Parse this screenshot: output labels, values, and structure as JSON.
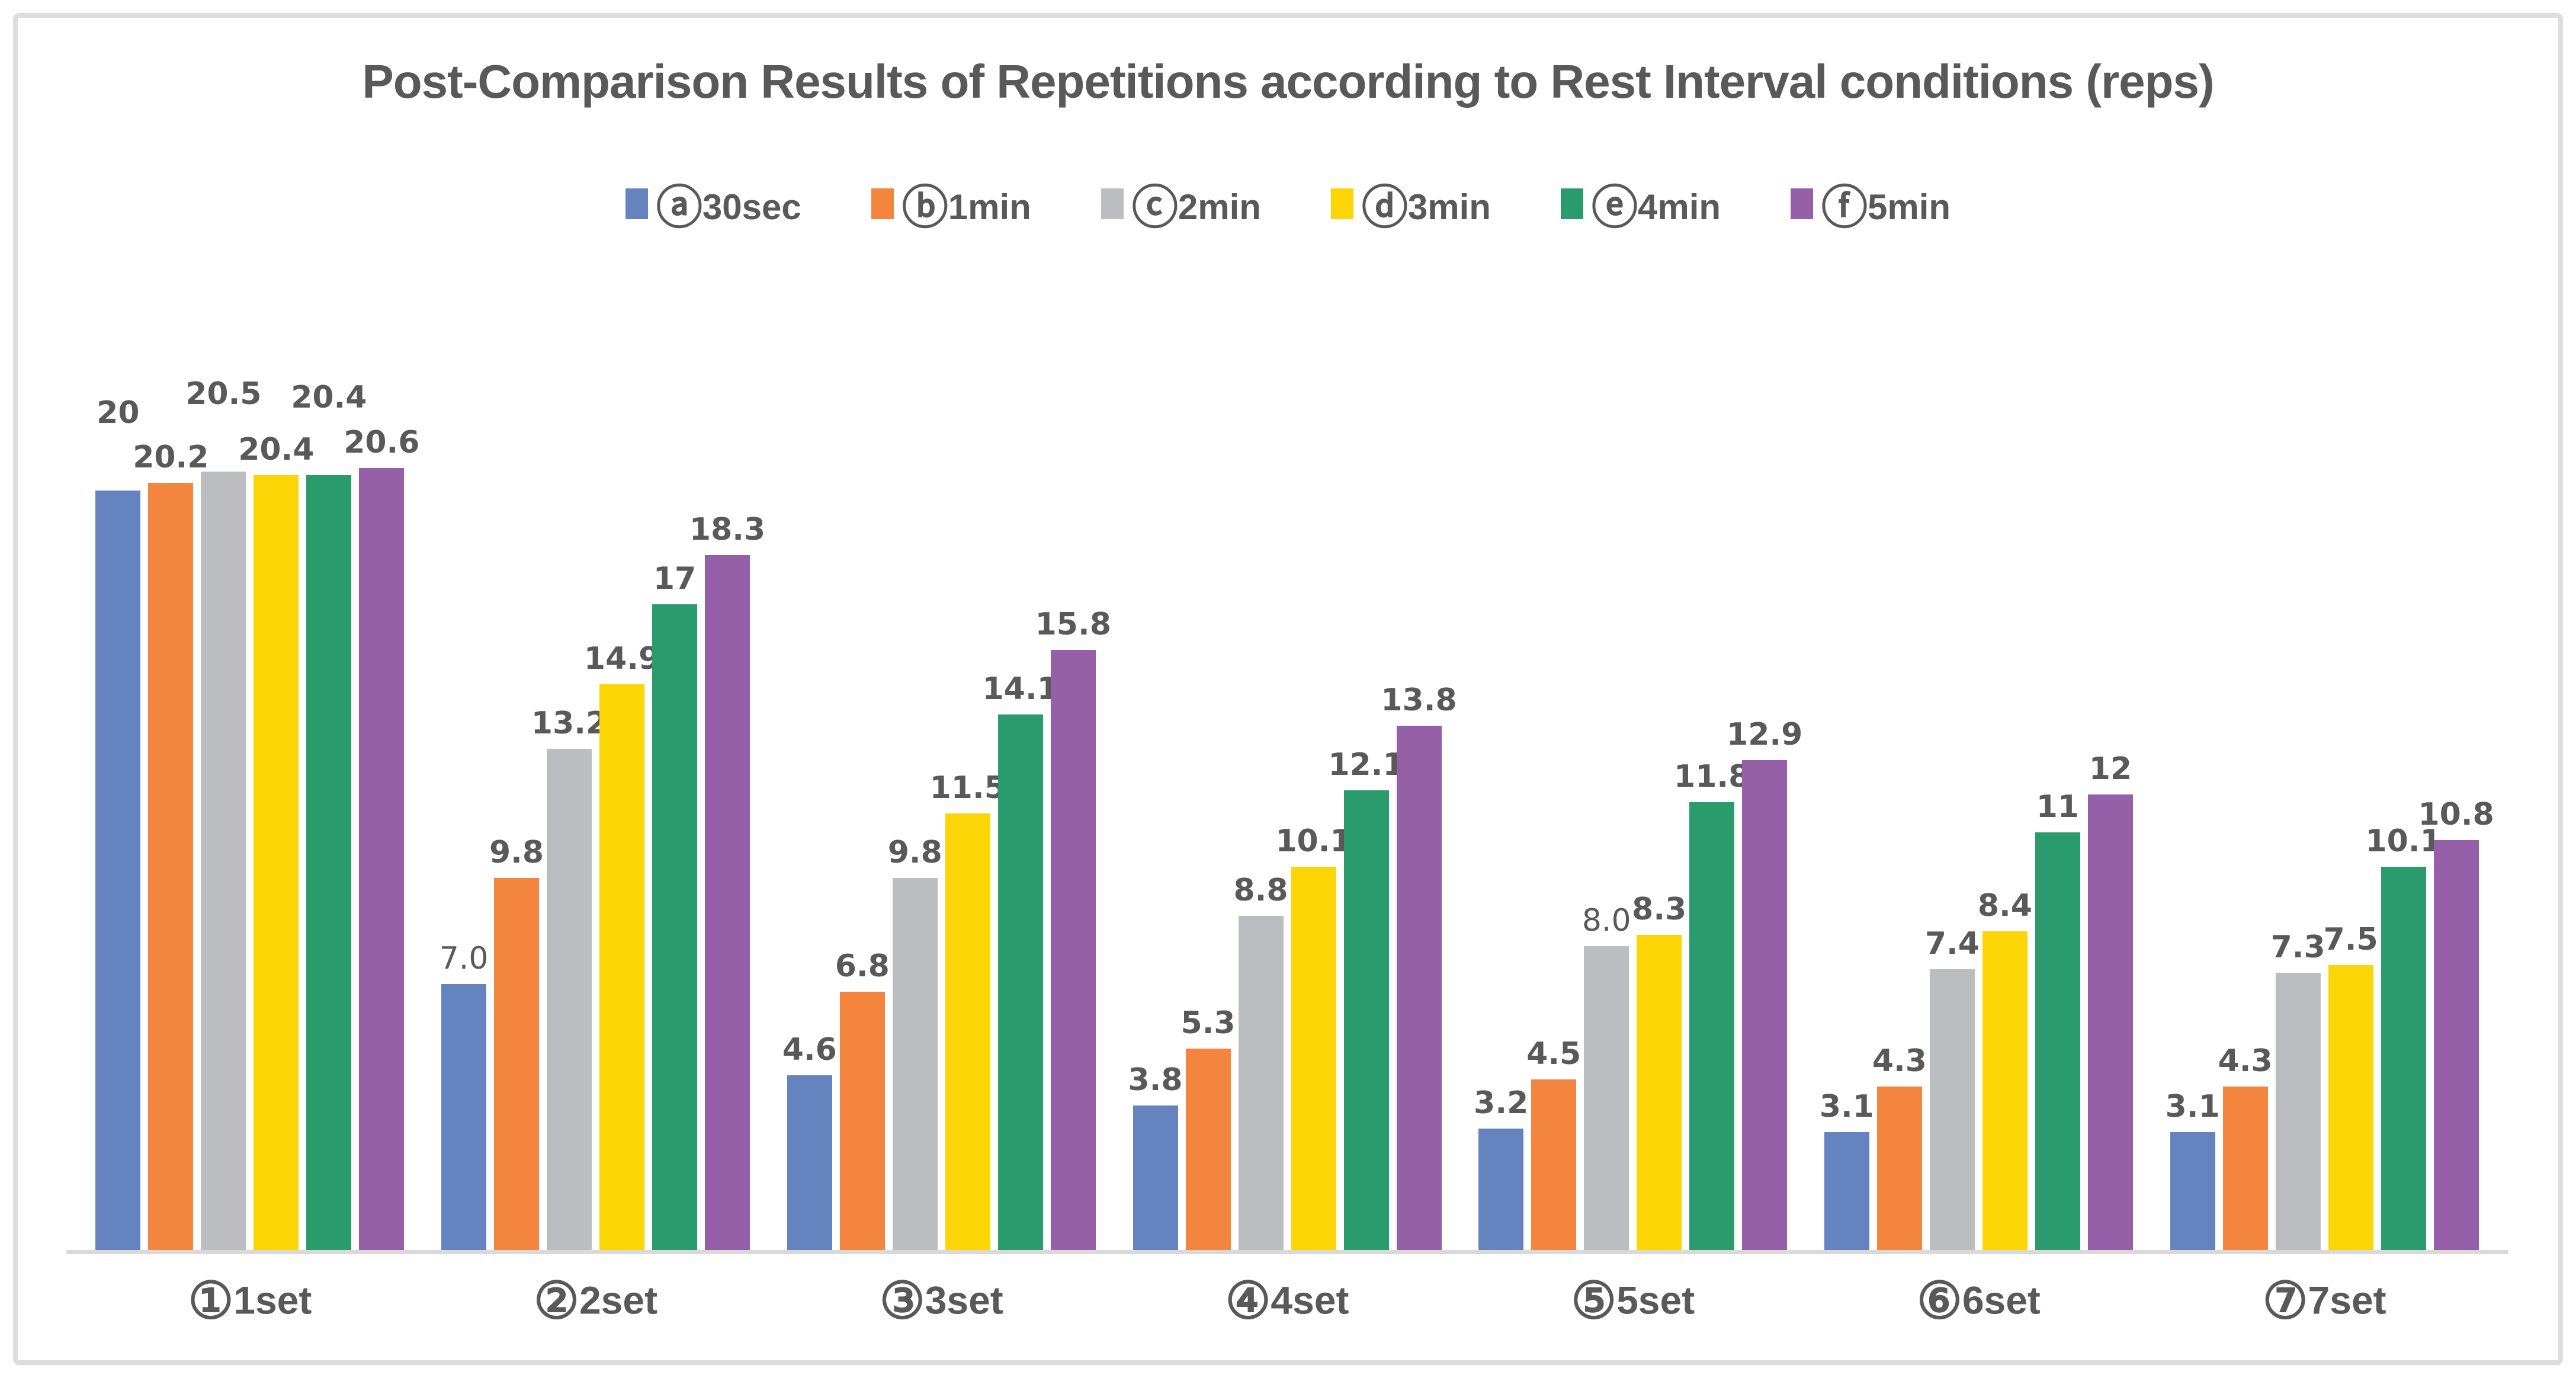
{
  "chart_data": {
    "type": "bar",
    "title": "Post-Comparison Results of Repetitions according to Rest Interval conditions (reps)",
    "xlabel": "",
    "ylabel": "",
    "ylim": [
      0,
      22
    ],
    "grid": false,
    "legend_position": "top",
    "data_labels": true,
    "categories": [
      "①1set",
      "②2set",
      "③3set",
      "④4set",
      "⑤5set",
      "⑥6set",
      "⑦7set"
    ],
    "series": [
      {
        "name": "ⓐ30sec",
        "color": "#6583BF",
        "values": [
          20,
          7.0,
          4.6,
          3.8,
          3.2,
          3.1,
          3.1
        ],
        "labels": [
          "20",
          "7.0",
          "4.6",
          "3.8",
          "3.2",
          "3.1",
          "3.1"
        ]
      },
      {
        "name": "ⓑ1min",
        "color": "#F3853E",
        "values": [
          20.2,
          9.8,
          6.8,
          5.3,
          4.5,
          4.3,
          4.3
        ],
        "labels": [
          "20.2",
          "9.8",
          "6.8",
          "5.3",
          "4.5",
          "4.3",
          "4.3"
        ]
      },
      {
        "name": "ⓒ2min",
        "color": "#BBBDC1",
        "values": [
          20.5,
          13.2,
          9.8,
          8.8,
          8.0,
          7.4,
          7.3
        ],
        "labels": [
          "20.5",
          "13.2",
          "9.8",
          "8.8",
          "8.0",
          "7.4",
          "7.3"
        ]
      },
      {
        "name": "ⓓ3min",
        "color": "#FBD505",
        "values": [
          20.4,
          14.9,
          11.5,
          10.1,
          8.3,
          8.4,
          7.5
        ],
        "labels": [
          "20.4",
          "14.9",
          "11.5",
          "10.1",
          "8.3",
          "8.4",
          "7.5"
        ]
      },
      {
        "name": "ⓔ4min",
        "color": "#2A9B6C",
        "values": [
          20.4,
          17,
          14.1,
          12.1,
          11.8,
          11,
          10.1
        ],
        "labels": [
          "20.4",
          "17",
          "14.1",
          "12.1",
          "11.8",
          "11",
          "10.1"
        ]
      },
      {
        "name": "ⓕ5min",
        "color": "#9560A8",
        "values": [
          20.6,
          18.3,
          15.8,
          13.8,
          12.9,
          12,
          10.8
        ],
        "labels": [
          "20.6",
          "18.3",
          "15.8",
          "13.8",
          "12.9",
          "12",
          "10.8"
        ]
      }
    ],
    "raised_labels": [
      [
        0,
        0
      ],
      [
        2,
        0
      ],
      [
        4,
        0
      ]
    ],
    "light_labels": [
      [
        0,
        1
      ],
      [
        2,
        4
      ]
    ],
    "colors": {
      "text": "#595959",
      "axis_line": "#D9D9D9",
      "frame_border": "#DCDDDE",
      "background": "#FFFFFF"
    }
  }
}
